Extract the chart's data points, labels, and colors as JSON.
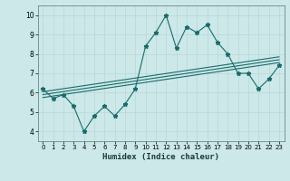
{
  "xlabel": "Humidex (Indice chaleur)",
  "bg_color": "#cce8e8",
  "grid_color": "#b8d8d8",
  "line_color": "#1a6b6b",
  "xlim": [
    -0.5,
    23.5
  ],
  "ylim": [
    3.5,
    10.5
  ],
  "xticks": [
    0,
    1,
    2,
    3,
    4,
    5,
    6,
    7,
    8,
    9,
    10,
    11,
    12,
    13,
    14,
    15,
    16,
    17,
    18,
    19,
    20,
    21,
    22,
    23
  ],
  "yticks": [
    4,
    5,
    6,
    7,
    8,
    9,
    10
  ],
  "data_x": [
    0,
    1,
    2,
    3,
    4,
    5,
    6,
    7,
    8,
    9,
    10,
    11,
    12,
    13,
    14,
    15,
    16,
    17,
    18,
    19,
    20,
    21,
    22,
    23
  ],
  "data_y": [
    6.2,
    5.7,
    5.9,
    5.3,
    4.0,
    4.8,
    5.3,
    4.8,
    5.4,
    6.2,
    8.4,
    9.1,
    10.0,
    8.3,
    9.4,
    9.1,
    9.5,
    8.6,
    8.0,
    7.0,
    7.0,
    6.2,
    6.7,
    7.4
  ],
  "reg_line1_pts": [
    [
      0,
      5.75
    ],
    [
      23,
      7.55
    ]
  ],
  "reg_line2_pts": [
    [
      0,
      5.9
    ],
    [
      23,
      7.7
    ]
  ],
  "reg_line3_pts": [
    [
      0,
      6.05
    ],
    [
      23,
      7.85
    ]
  ]
}
